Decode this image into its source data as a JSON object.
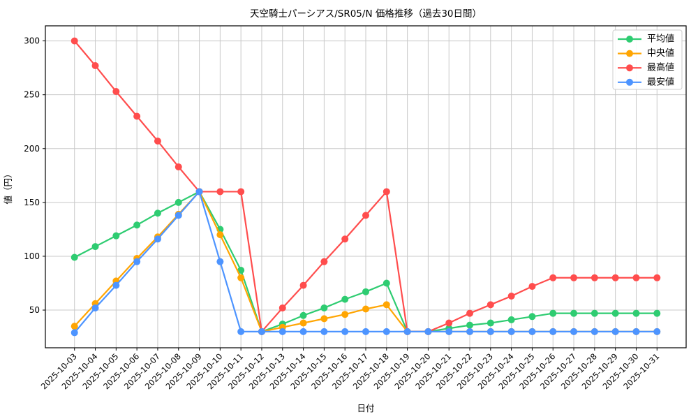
{
  "chart_data": {
    "type": "line",
    "title": "天空騎士パーシアス/SR05/N 価格推移（過去30日間）",
    "xlabel": "日付",
    "ylabel": "値（円）",
    "x": [
      "2025-10-03",
      "2025-10-04",
      "2025-10-05",
      "2025-10-06",
      "2025-10-07",
      "2025-10-08",
      "2025-10-09",
      "2025-10-10",
      "2025-10-11",
      "2025-10-12",
      "2025-10-13",
      "2025-10-14",
      "2025-10-15",
      "2025-10-16",
      "2025-10-17",
      "2025-10-18",
      "2025-10-19",
      "2025-10-20",
      "2025-10-21",
      "2025-10-22",
      "2025-10-23",
      "2025-10-24",
      "2025-10-25",
      "2025-10-26",
      "2025-10-27",
      "2025-10-28",
      "2025-10-29",
      "2025-10-30",
      "2025-10-31"
    ],
    "series": [
      {
        "name": "平均値",
        "color": "#2ecc71",
        "values": [
          99,
          109,
          119,
          129,
          140,
          150,
          160,
          125,
          87,
          30,
          37,
          45,
          52,
          60,
          67,
          75,
          30,
          30,
          33,
          36,
          38,
          41,
          44,
          47,
          47,
          47,
          47,
          47,
          47
        ]
      },
      {
        "name": "中央値",
        "color": "#ffa502",
        "values": [
          35,
          56,
          77,
          98,
          118,
          139,
          160,
          120,
          80,
          30,
          34,
          38,
          42,
          46,
          51,
          55,
          30,
          30,
          30,
          30,
          30,
          30,
          30,
          30,
          30,
          30,
          30,
          30,
          30
        ]
      },
      {
        "name": "最高値",
        "color": "#ff4d4d",
        "values": [
          300,
          277,
          253,
          230,
          207,
          183,
          160,
          160,
          160,
          30,
          52,
          73,
          95,
          116,
          138,
          160,
          30,
          30,
          38,
          47,
          55,
          63,
          72,
          80,
          80,
          80,
          80,
          80,
          80
        ]
      },
      {
        "name": "最安値",
        "color": "#4d94ff",
        "values": [
          29,
          52,
          73,
          95,
          116,
          138,
          160,
          95,
          30,
          30,
          30,
          30,
          30,
          30,
          30,
          30,
          30,
          30,
          30,
          30,
          30,
          30,
          30,
          30,
          30,
          30,
          30,
          30,
          30
        ]
      }
    ],
    "ylim": [
      15,
      314
    ],
    "yticks": [
      50,
      100,
      150,
      200,
      250,
      300
    ],
    "grid": true,
    "legend_position": "upper right",
    "grid_color": "#c8c8c8",
    "frame_color": "#000000"
  }
}
